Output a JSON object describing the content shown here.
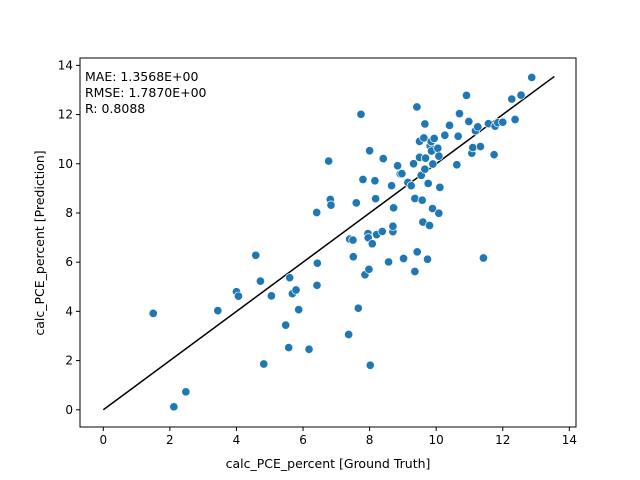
{
  "chart_data": {
    "type": "scatter",
    "xlabel": "calc_PCE_percent [Ground Truth]",
    "ylabel": "calc_PCE_percent [Prediction]",
    "xlim": [
      -0.7,
      14.2
    ],
    "ylim": [
      -0.7,
      14.3
    ],
    "xticks": [
      0,
      2,
      4,
      6,
      8,
      10,
      12,
      14
    ],
    "yticks": [
      0,
      2,
      4,
      6,
      8,
      10,
      12,
      14
    ],
    "grid": false,
    "annotation_lines": [
      "MAE:  1.3568E+00",
      "RMSE: 1.7870E+00",
      "R:  0.8088"
    ],
    "point_color": "#1f77b4",
    "line_color": "#000000",
    "reference_line": {
      "x": [
        0,
        13.55
      ],
      "y": [
        0,
        13.55
      ]
    },
    "points": [
      [
        1.5,
        3.92
      ],
      [
        2.12,
        0.12
      ],
      [
        2.48,
        0.73
      ],
      [
        3.44,
        4.03
      ],
      [
        4.0,
        4.8
      ],
      [
        4.06,
        4.62
      ],
      [
        4.58,
        6.28
      ],
      [
        4.72,
        5.23
      ],
      [
        4.82,
        1.86
      ],
      [
        5.05,
        4.63
      ],
      [
        5.48,
        3.44
      ],
      [
        5.57,
        2.53
      ],
      [
        5.6,
        5.37
      ],
      [
        5.68,
        4.72
      ],
      [
        5.79,
        4.87
      ],
      [
        5.87,
        4.07
      ],
      [
        6.18,
        2.46
      ],
      [
        6.42,
        5.06
      ],
      [
        6.43,
        5.96
      ],
      [
        6.41,
        8.02
      ],
      [
        6.77,
        10.11
      ],
      [
        6.82,
        8.55
      ],
      [
        6.84,
        8.32
      ],
      [
        7.37,
        3.06
      ],
      [
        7.4,
        6.94
      ],
      [
        7.5,
        6.9
      ],
      [
        7.51,
        6.22
      ],
      [
        7.6,
        8.41
      ],
      [
        7.66,
        4.13
      ],
      [
        7.74,
        12.01
      ],
      [
        7.8,
        9.36
      ],
      [
        7.86,
        5.49
      ],
      [
        7.95,
        7.16
      ],
      [
        7.96,
        6.99
      ],
      [
        7.98,
        5.71
      ],
      [
        8.0,
        10.53
      ],
      [
        8.02,
        1.81
      ],
      [
        8.08,
        6.75
      ],
      [
        8.16,
        9.31
      ],
      [
        8.18,
        8.58
      ],
      [
        8.21,
        7.12
      ],
      [
        8.38,
        7.25
      ],
      [
        8.41,
        10.21
      ],
      [
        8.57,
        6.01
      ],
      [
        8.66,
        9.11
      ],
      [
        8.7,
        7.24
      ],
      [
        8.7,
        7.46
      ],
      [
        8.72,
        8.21
      ],
      [
        8.84,
        9.92
      ],
      [
        8.92,
        9.59
      ],
      [
        8.97,
        9.6
      ],
      [
        9.02,
        6.15
      ],
      [
        9.15,
        9.24
      ],
      [
        9.25,
        9.11
      ],
      [
        9.32,
        10.0
      ],
      [
        9.36,
        8.59
      ],
      [
        9.36,
        5.62
      ],
      [
        9.42,
        12.31
      ],
      [
        9.43,
        6.42
      ],
      [
        9.5,
        10.91
      ],
      [
        9.5,
        10.26
      ],
      [
        9.55,
        9.53
      ],
      [
        9.58,
        8.52
      ],
      [
        9.6,
        7.63
      ],
      [
        9.63,
        11.05
      ],
      [
        9.66,
        9.78
      ],
      [
        9.66,
        11.62
      ],
      [
        9.68,
        10.23
      ],
      [
        9.74,
        6.12
      ],
      [
        9.76,
        9.2
      ],
      [
        9.8,
        7.49
      ],
      [
        9.82,
        10.73
      ],
      [
        9.85,
        10.9
      ],
      [
        9.86,
        10.52
      ],
      [
        9.89,
        8.18
      ],
      [
        9.9,
        9.99
      ],
      [
        9.94,
        11.03
      ],
      [
        10.05,
        10.63
      ],
      [
        10.08,
        10.31
      ],
      [
        10.08,
        7.99
      ],
      [
        10.11,
        9.04
      ],
      [
        10.26,
        11.16
      ],
      [
        10.4,
        11.56
      ],
      [
        10.62,
        9.96
      ],
      [
        10.66,
        11.12
      ],
      [
        10.7,
        12.04
      ],
      [
        10.91,
        12.78
      ],
      [
        10.98,
        11.72
      ],
      [
        11.07,
        10.43
      ],
      [
        11.1,
        10.66
      ],
      [
        11.18,
        11.34
      ],
      [
        11.25,
        11.5
      ],
      [
        11.33,
        10.7
      ],
      [
        11.42,
        6.17
      ],
      [
        11.57,
        11.63
      ],
      [
        11.74,
        10.37
      ],
      [
        11.77,
        11.53
      ],
      [
        11.85,
        11.67
      ],
      [
        12.0,
        11.69
      ],
      [
        12.27,
        12.63
      ],
      [
        12.37,
        11.8
      ],
      [
        12.55,
        12.79
      ],
      [
        12.87,
        13.51
      ]
    ]
  }
}
